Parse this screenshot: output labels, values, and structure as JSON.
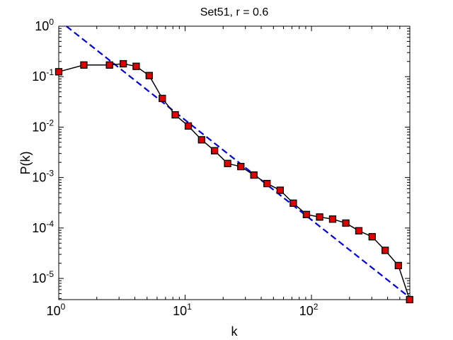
{
  "chart_data": {
    "type": "line",
    "title": "Set51, r = 0.6",
    "xlabel": "k",
    "ylabel": "P(k)",
    "xscale": "log",
    "yscale": "log",
    "xlim": [
      1,
      600
    ],
    "ylim": [
      3.8e-06,
      1
    ],
    "grid": false,
    "x_tick_labels": [
      {
        "base": "10",
        "exp": "0",
        "value": 1
      },
      {
        "base": "10",
        "exp": "1",
        "value": 10
      },
      {
        "base": "10",
        "exp": "2",
        "value": 100
      }
    ],
    "y_tick_labels": [
      {
        "base": "10",
        "exp": "0",
        "value": 1
      },
      {
        "base": "10",
        "exp": "-1",
        "value": 0.1
      },
      {
        "base": "10",
        "exp": "-2",
        "value": 0.01
      },
      {
        "base": "10",
        "exp": "-3",
        "value": 0.001
      },
      {
        "base": "10",
        "exp": "-4",
        "value": 0.0001
      },
      {
        "base": "10",
        "exp": "-5",
        "value": 1e-05
      }
    ],
    "series": [
      {
        "style": "solid black line with red square markers",
        "marker_color": "#e00000",
        "line_color": "#000000",
        "x": [
          1.0,
          1.58,
          2.52,
          3.24,
          4.1,
          5.2,
          6.6,
          8.35,
          10.6,
          13.5,
          17.1,
          21.7,
          27.6,
          35.0,
          44.5,
          56.5,
          71.8,
          91.2,
          116.0,
          147.0,
          187.0,
          237.0,
          302.0,
          383.0,
          487.0,
          598.0
        ],
        "y": [
          0.125,
          0.17,
          0.17,
          0.18,
          0.16,
          0.105,
          0.037,
          0.0175,
          0.0105,
          0.0056,
          0.0034,
          0.0019,
          0.00165,
          0.00112,
          0.00076,
          0.00056,
          0.00031,
          0.000185,
          0.000165,
          0.00015,
          0.000125,
          8.8e-05,
          6.7e-05,
          3.6e-05,
          1.8e-05,
          3.8e-06
        ]
      },
      {
        "style": "dashed blue fit line",
        "line_color": "#0000dd",
        "x": [
          1.15,
          598.0
        ],
        "y": [
          1.0,
          4.2e-06
        ]
      }
    ]
  }
}
